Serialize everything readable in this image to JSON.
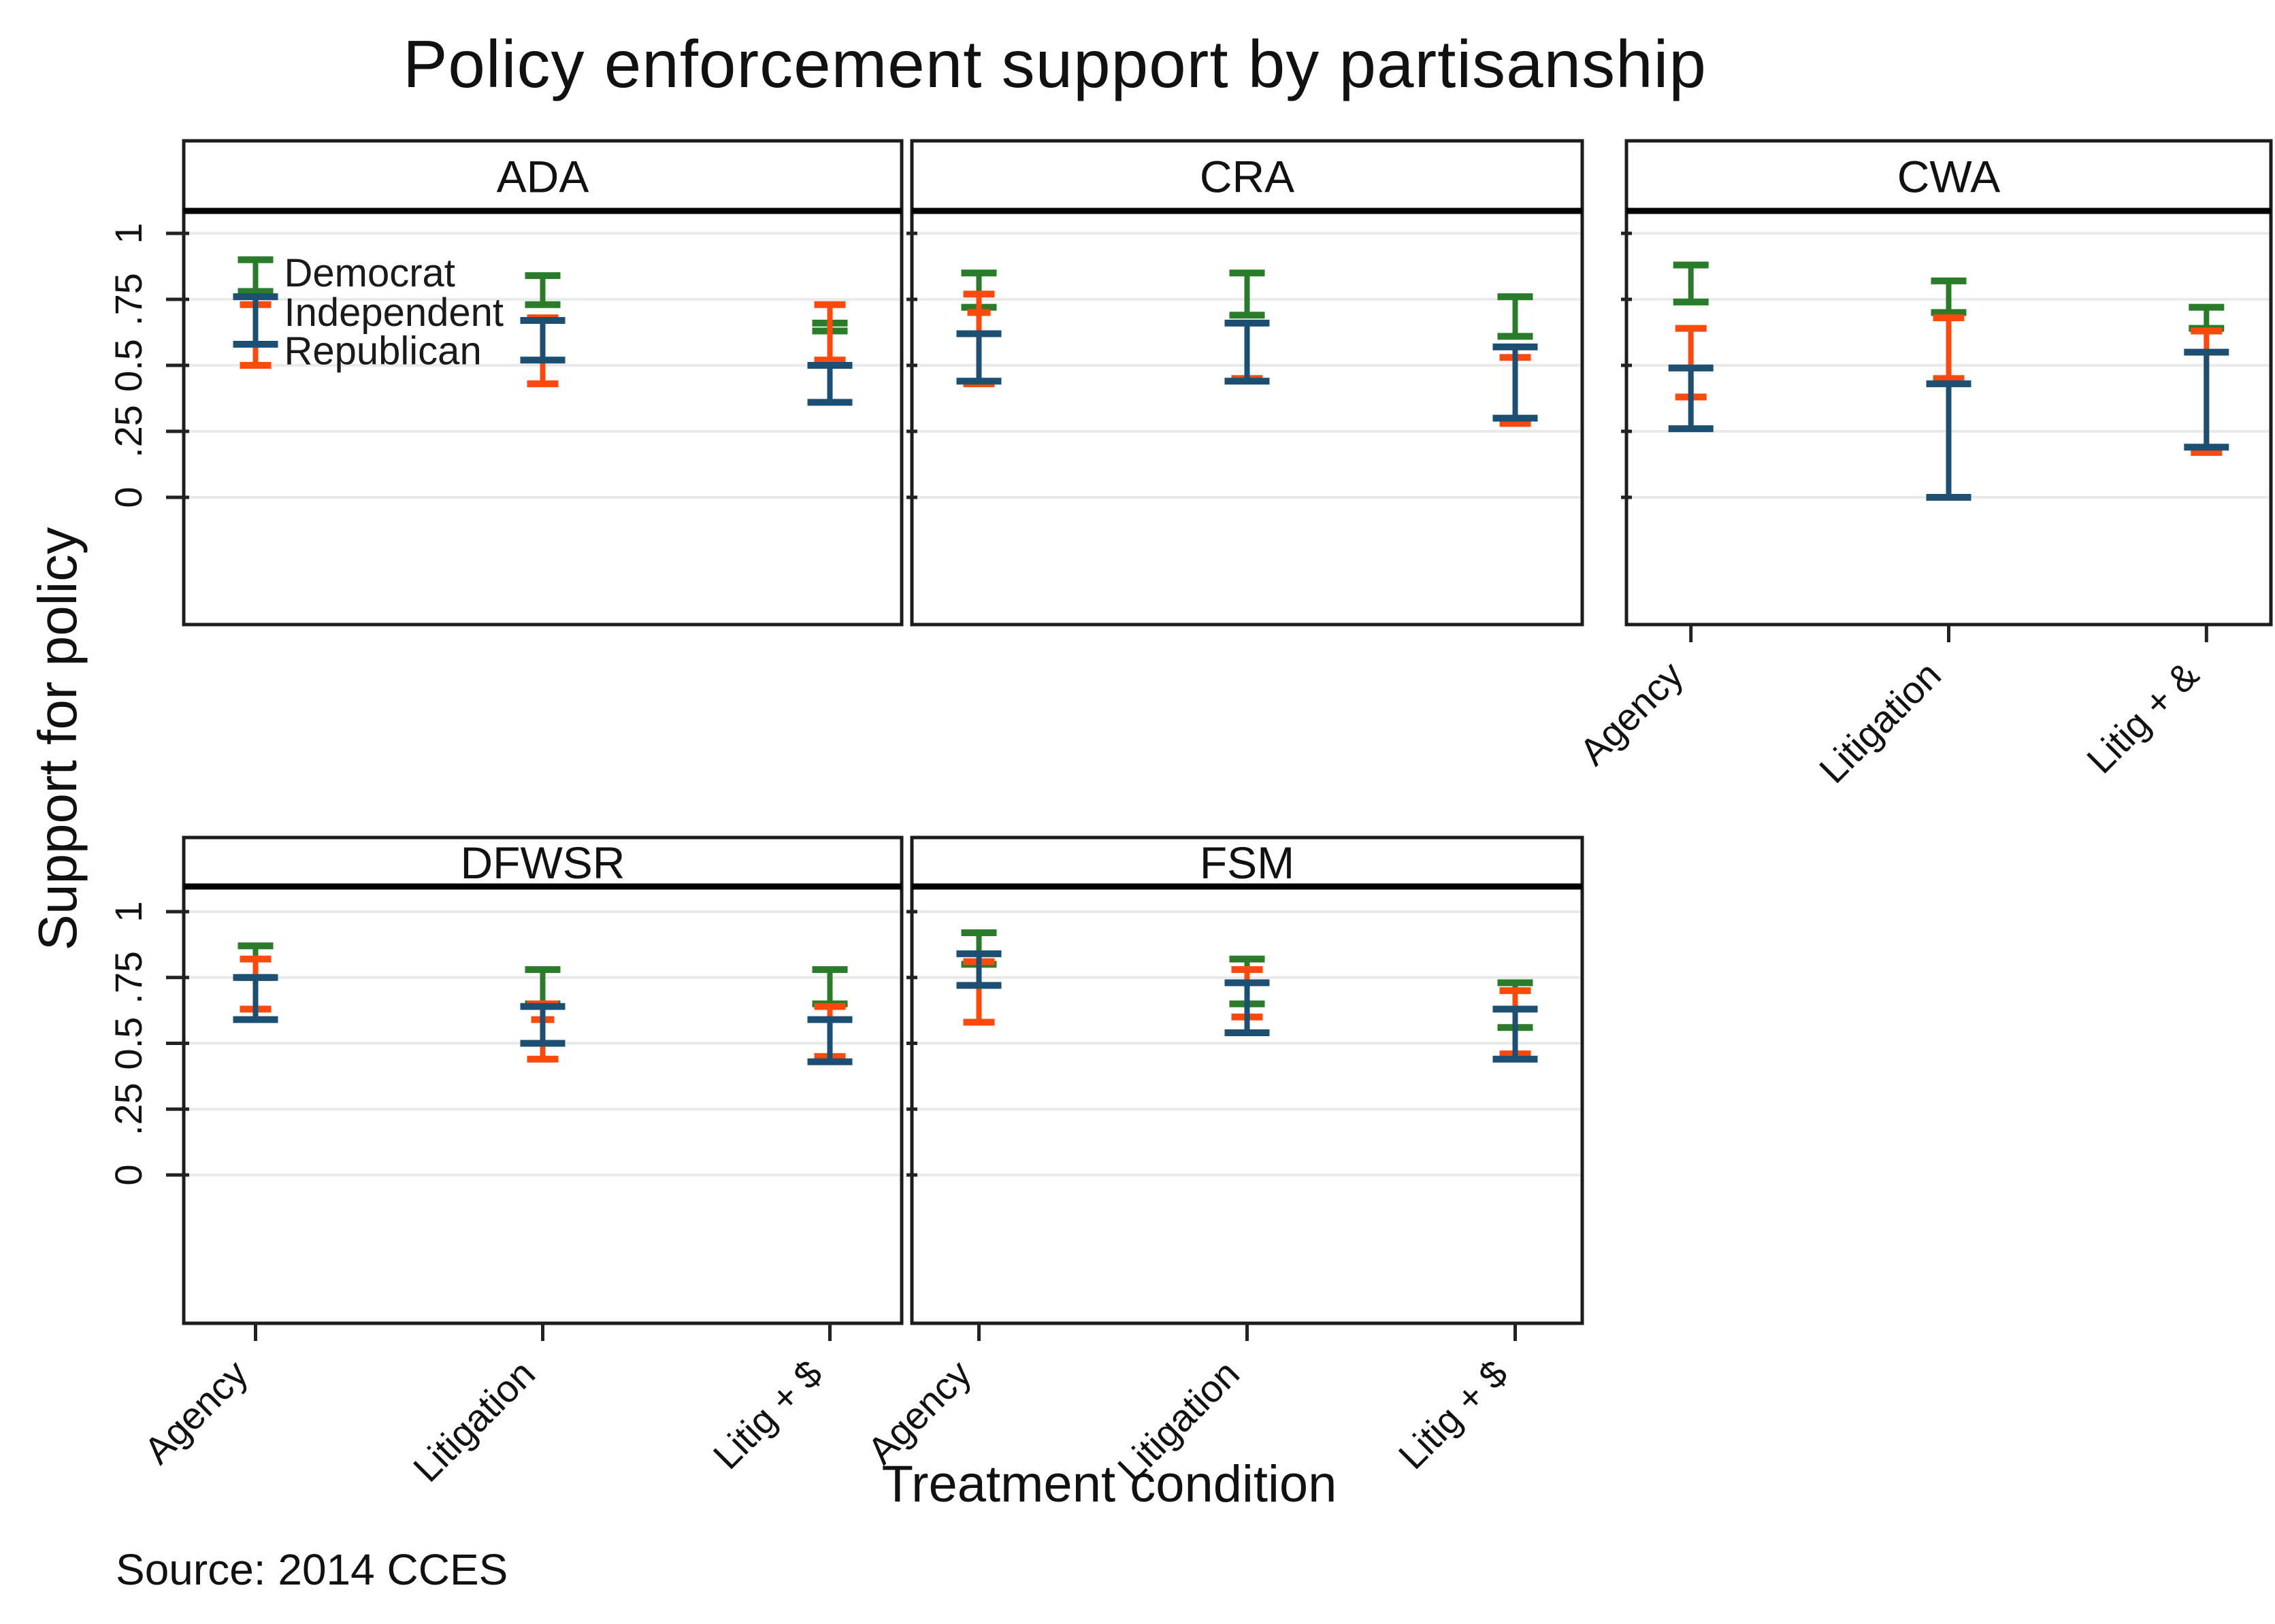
{
  "title": "Policy enforcement support by partisanship",
  "source_note": "Source: 2014 CCES",
  "axes": {
    "y_label": "Support for policy",
    "x_label": "Treatment condition",
    "y_ticks": [
      {
        "v": 1.0,
        "label": "1"
      },
      {
        "v": 0.75,
        "label": ".75"
      },
      {
        "v": 0.5,
        "label": "0.5"
      },
      {
        "v": 0.25,
        "label": ".25"
      },
      {
        "v": 0.0,
        "label": "0"
      }
    ]
  },
  "legend": {
    "items": [
      {
        "party": "Democrat",
        "color": "#2a7b2a",
        "anchor_v": 0.85
      },
      {
        "party": "Independent",
        "color": "#1d4f72",
        "anchor_v": 0.7
      },
      {
        "party": "Republican",
        "color": "#fb4a0d",
        "anchor_v": 0.555
      }
    ],
    "host_panel": "ADA"
  },
  "colors": {
    "democrat": "#2a7b2a",
    "independent": "#1d4f72",
    "republican": "#fb4a0d",
    "gridline": "#e9e9e9",
    "panel_border": "#1c1c1c",
    "text": "#111111"
  },
  "chart_data": {
    "type": "error-bar-panels",
    "note": "95% confidence intervals of support for policy (0-1) by partisanship, five policy panels, three treatment conditions",
    "ylim": [
      0,
      1
    ],
    "grid": true,
    "categories": [
      "Agency",
      "Litigation",
      "Litig + $"
    ],
    "parties": [
      "Democrat",
      "Independent",
      "Republican"
    ],
    "panels": [
      {
        "name": "ADA",
        "row": 0,
        "col": 0,
        "x_tick_labels": [],
        "series": {
          "Democrat": [
            {
              "lo": 0.78,
              "hi": 0.9
            },
            {
              "lo": 0.73,
              "hi": 0.84
            },
            {
              "lo": 0.63,
              "hi": 0.66
            }
          ],
          "Independent": [
            {
              "lo": 0.58,
              "hi": 0.76
            },
            {
              "lo": 0.52,
              "hi": 0.67
            },
            {
              "lo": 0.36,
              "hi": 0.5
            }
          ],
          "Republican": [
            {
              "lo": 0.5,
              "hi": 0.73
            },
            {
              "lo": 0.43,
              "hi": 0.68
            },
            {
              "lo": 0.52,
              "hi": 0.73
            }
          ]
        }
      },
      {
        "name": "CRA",
        "row": 0,
        "col": 1,
        "x_tick_labels": [],
        "series": {
          "Democrat": [
            {
              "lo": 0.72,
              "hi": 0.85
            },
            {
              "lo": 0.69,
              "hi": 0.85
            },
            {
              "lo": 0.61,
              "hi": 0.76
            }
          ],
          "Independent": [
            {
              "lo": 0.44,
              "hi": 0.62
            },
            {
              "lo": 0.44,
              "hi": 0.66
            },
            {
              "lo": 0.3,
              "hi": 0.57
            }
          ],
          "Republican": [
            {
              "lo": 0.43,
              "hi": 0.77,
              "mid": 0.7
            },
            {
              "lo": 0.45,
              "hi": 0.66
            },
            {
              "lo": 0.28,
              "hi": 0.53
            }
          ]
        }
      },
      {
        "name": "CWA",
        "row": 0,
        "col": 2,
        "x_tick_labels": [
          "Agency",
          "Litigation",
          "Litig + &"
        ],
        "series": {
          "Democrat": [
            {
              "lo": 0.74,
              "hi": 0.88
            },
            {
              "lo": 0.7,
              "hi": 0.82
            },
            {
              "lo": 0.64,
              "hi": 0.72
            }
          ],
          "Independent": [
            {
              "lo": 0.26,
              "hi": 0.49
            },
            {
              "lo": 0.0,
              "hi": 0.43
            },
            {
              "lo": 0.19,
              "hi": 0.55
            }
          ],
          "Republican": [
            {
              "lo": 0.38,
              "hi": 0.64
            },
            {
              "lo": 0.45,
              "hi": 0.68
            },
            {
              "lo": 0.17,
              "hi": 0.63
            }
          ]
        }
      },
      {
        "name": "DFWSR",
        "row": 1,
        "col": 0,
        "x_tick_labels": [
          "Agency",
          "Litigation",
          "Litig + $"
        ],
        "series": {
          "Democrat": [
            {
              "lo": 0.75,
              "hi": 0.87
            },
            {
              "lo": 0.65,
              "hi": 0.78
            },
            {
              "lo": 0.65,
              "hi": 0.78
            }
          ],
          "Independent": [
            {
              "lo": 0.59,
              "hi": 0.75
            },
            {
              "lo": 0.5,
              "hi": 0.64
            },
            {
              "lo": 0.43,
              "hi": 0.59
            }
          ],
          "Republican": [
            {
              "lo": 0.63,
              "hi": 0.82
            },
            {
              "lo": 0.44,
              "hi": 0.65,
              "mid": 0.59
            },
            {
              "lo": 0.45,
              "hi": 0.64
            }
          ]
        }
      },
      {
        "name": "FSM",
        "row": 1,
        "col": 1,
        "x_tick_labels": [
          "Agency",
          "Litigation",
          "Litig + $"
        ],
        "series": {
          "Democrat": [
            {
              "lo": 0.8,
              "hi": 0.92
            },
            {
              "lo": 0.65,
              "hi": 0.82
            },
            {
              "lo": 0.56,
              "hi": 0.73
            }
          ],
          "Independent": [
            {
              "lo": 0.72,
              "hi": 0.84
            },
            {
              "lo": 0.54,
              "hi": 0.73
            },
            {
              "lo": 0.44,
              "hi": 0.63
            }
          ],
          "Republican": [
            {
              "lo": 0.58,
              "hi": 0.81
            },
            {
              "lo": 0.6,
              "hi": 0.78
            },
            {
              "lo": 0.46,
              "hi": 0.7
            }
          ]
        }
      }
    ]
  }
}
